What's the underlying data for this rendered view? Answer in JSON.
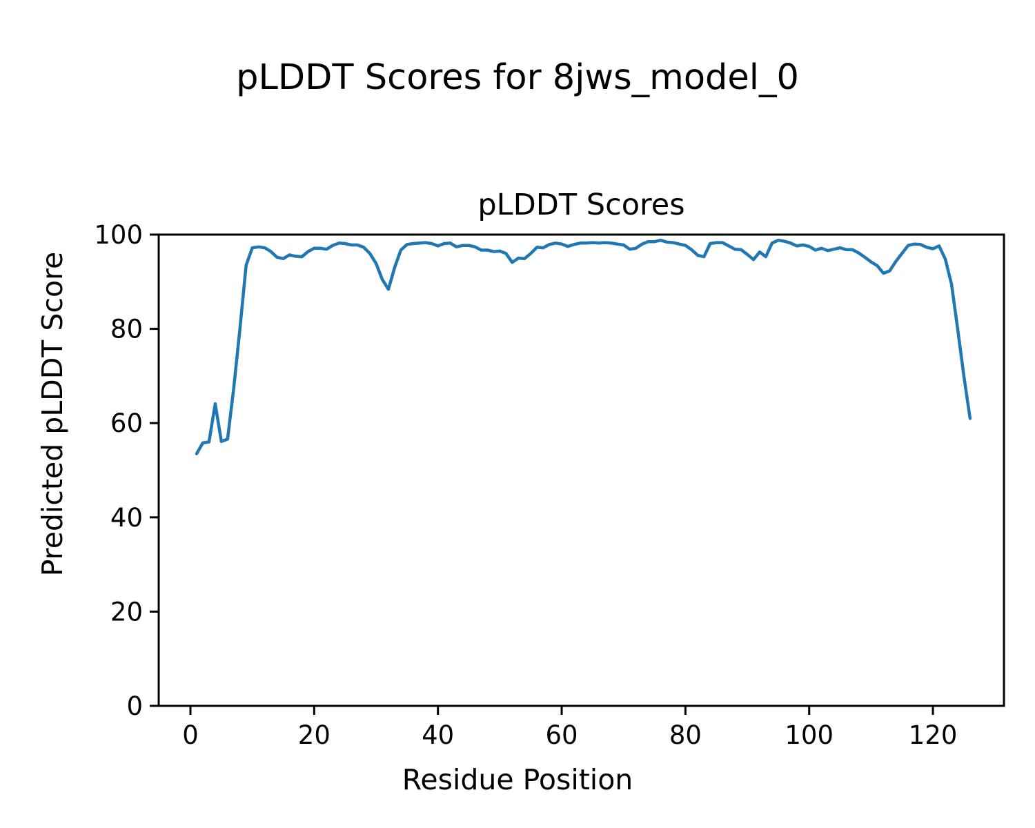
{
  "figure": {
    "suptitle": "pLDDT Scores for 8jws_model_0"
  },
  "chart_data": {
    "type": "line",
    "title": "pLDDT Scores",
    "xlabel": "Residue Position",
    "ylabel": "Predicted pLDDT Score",
    "grid": false,
    "legend": null,
    "xlim": [
      -5.13,
      131.48
    ],
    "ylim": [
      0,
      100
    ],
    "xticks": [
      0,
      20,
      40,
      60,
      80,
      100,
      120
    ],
    "yticks": [
      0,
      20,
      40,
      60,
      80,
      100
    ],
    "x_start": 1,
    "x_step": 1,
    "series": [
      {
        "name": "pLDDT",
        "color": "#1f77b4",
        "values": [
          53.5,
          55.8,
          56.0,
          64.1,
          56.1,
          56.6,
          67.5,
          80.0,
          93.5,
          97.2,
          97.4,
          97.2,
          96.4,
          95.2,
          94.9,
          95.7,
          95.4,
          95.3,
          96.4,
          97.1,
          97.1,
          96.9,
          97.7,
          98.2,
          98.1,
          97.8,
          97.8,
          97.3,
          96.0,
          93.9,
          90.5,
          88.4,
          93.0,
          96.7,
          97.9,
          98.1,
          98.2,
          98.3,
          98.1,
          97.6,
          98.1,
          98.2,
          97.4,
          97.7,
          97.7,
          97.4,
          96.7,
          96.7,
          96.4,
          96.5,
          96.0,
          94.1,
          95.0,
          94.9,
          96.0,
          97.3,
          97.2,
          97.9,
          98.2,
          98.0,
          97.5,
          97.9,
          98.2,
          98.2,
          98.3,
          98.2,
          98.3,
          98.2,
          98.0,
          97.8,
          96.9,
          97.1,
          98.0,
          98.5,
          98.5,
          98.8,
          98.4,
          98.3,
          98.0,
          97.7,
          96.8,
          95.6,
          95.3,
          98.1,
          98.3,
          98.3,
          97.6,
          96.9,
          96.8,
          95.8,
          94.7,
          96.3,
          95.3,
          98.2,
          98.8,
          98.6,
          98.2,
          97.6,
          97.8,
          97.5,
          96.7,
          97.1,
          96.6,
          96.9,
          97.2,
          96.8,
          96.8,
          96.1,
          95.2,
          94.2,
          93.4,
          91.8,
          92.3,
          94.3,
          96.0,
          97.7,
          98.0,
          97.9,
          97.3,
          97.0,
          97.6,
          94.8,
          89.5,
          80.0,
          70.0,
          61.0
        ]
      }
    ]
  }
}
